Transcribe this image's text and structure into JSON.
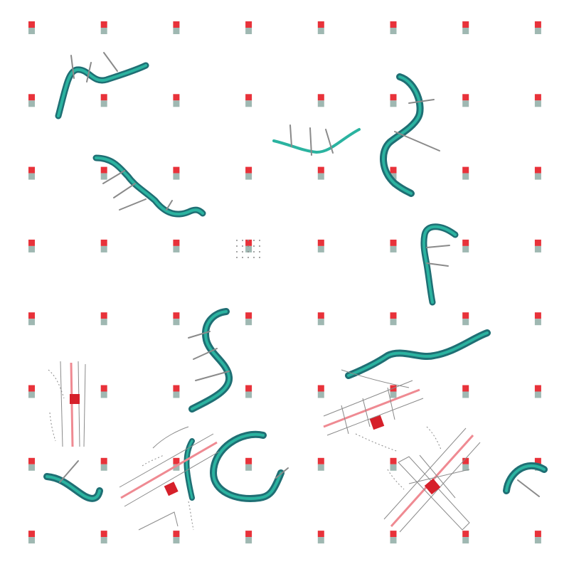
{
  "artwork": {
    "grid": {
      "rows": 8,
      "cols": 8
    },
    "colors": {
      "background": "#ffffff",
      "marker_top": "#e8323a",
      "marker_bottom": "#9fb8b2",
      "river_light": "#2bb3a0",
      "river_dark": "#1f6f74",
      "road_pink": "#ef8a92",
      "site_red": "#d6202a",
      "line_grey": "#8a8a8a"
    },
    "icons": [
      "grid-marker",
      "river-fragment",
      "site-plan",
      "dot-grid"
    ]
  }
}
